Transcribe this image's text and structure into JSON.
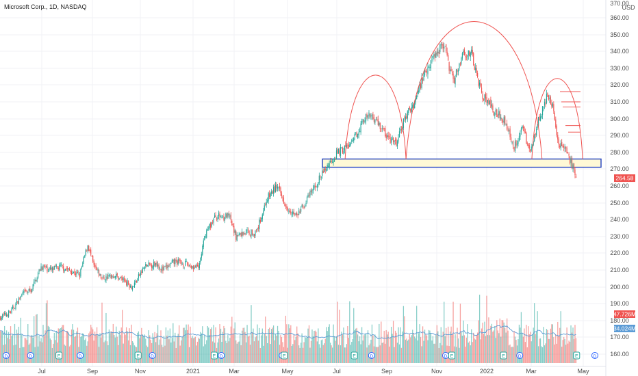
{
  "header": {
    "title": "Microsoft Corp., 1D, NASDAQ"
  },
  "chart_data": {
    "type": "candlestick",
    "currency": "USD",
    "y_ticks": [
      160,
      170,
      180,
      190,
      200,
      210,
      220,
      230,
      240,
      250,
      260,
      270,
      280,
      290,
      300,
      310,
      320,
      330,
      340,
      350,
      360,
      370
    ],
    "x_labels": [
      "Jul",
      "Sep",
      "Nov",
      "2021",
      "Mar",
      "May",
      "Jul",
      "Sep",
      "Nov",
      "2022",
      "Mar",
      "May"
    ],
    "price_waypoints": [
      {
        "t": 0,
        "p": 182
      },
      {
        "t": 10,
        "p": 185
      },
      {
        "t": 22,
        "p": 196
      },
      {
        "t": 30,
        "p": 198
      },
      {
        "t": 40,
        "p": 212
      },
      {
        "t": 50,
        "p": 210
      },
      {
        "t": 60,
        "p": 212
      },
      {
        "t": 70,
        "p": 209
      },
      {
        "t": 78,
        "p": 207
      },
      {
        "t": 86,
        "p": 225
      },
      {
        "t": 92,
        "p": 212
      },
      {
        "t": 100,
        "p": 205
      },
      {
        "t": 112,
        "p": 207
      },
      {
        "t": 122,
        "p": 204
      },
      {
        "t": 130,
        "p": 200
      },
      {
        "t": 142,
        "p": 212
      },
      {
        "t": 154,
        "p": 214
      },
      {
        "t": 160,
        "p": 210
      },
      {
        "t": 172,
        "p": 215
      },
      {
        "t": 185,
        "p": 213
      },
      {
        "t": 195,
        "p": 211
      },
      {
        "t": 202,
        "p": 232
      },
      {
        "t": 212,
        "p": 242
      },
      {
        "t": 225,
        "p": 242
      },
      {
        "t": 232,
        "p": 230
      },
      {
        "t": 242,
        "p": 233
      },
      {
        "t": 252,
        "p": 232
      },
      {
        "t": 262,
        "p": 252
      },
      {
        "t": 272,
        "p": 260
      },
      {
        "t": 282,
        "p": 248
      },
      {
        "t": 292,
        "p": 242
      },
      {
        "t": 302,
        "p": 252
      },
      {
        "t": 312,
        "p": 262
      },
      {
        "t": 322,
        "p": 272
      },
      {
        "t": 332,
        "p": 280
      },
      {
        "t": 346,
        "p": 285
      },
      {
        "t": 358,
        "p": 300
      },
      {
        "t": 366,
        "p": 302
      },
      {
        "t": 374,
        "p": 296
      },
      {
        "t": 382,
        "p": 288
      },
      {
        "t": 390,
        "p": 285
      },
      {
        "t": 398,
        "p": 300
      },
      {
        "t": 408,
        "p": 310
      },
      {
        "t": 418,
        "p": 328
      },
      {
        "t": 428,
        "p": 338
      },
      {
        "t": 436,
        "p": 345
      },
      {
        "t": 446,
        "p": 322
      },
      {
        "t": 456,
        "p": 340
      },
      {
        "t": 464,
        "p": 338
      },
      {
        "t": 474,
        "p": 315
      },
      {
        "t": 486,
        "p": 305
      },
      {
        "t": 496,
        "p": 300
      },
      {
        "t": 506,
        "p": 283
      },
      {
        "t": 514,
        "p": 295
      },
      {
        "t": 522,
        "p": 280
      },
      {
        "t": 530,
        "p": 300
      },
      {
        "t": 538,
        "p": 312
      },
      {
        "t": 544,
        "p": 308
      },
      {
        "t": 550,
        "p": 285
      },
      {
        "t": 556,
        "p": 282
      },
      {
        "t": 562,
        "p": 274
      },
      {
        "t": 567,
        "p": 265
      }
    ],
    "last_price": "264.58",
    "volume_labels": {
      "current": "47.726M",
      "average": "34.024M"
    },
    "support_zone": {
      "low": 271,
      "high": 276
    },
    "arcs": [
      {
        "start_t": 340,
        "end_t": 400,
        "peak": 326
      },
      {
        "start_t": 400,
        "end_t": 534,
        "peak": 358
      },
      {
        "start_t": 524,
        "end_t": 574,
        "peak": 324
      }
    ],
    "resistance_marks": [
      316,
      310,
      307,
      296,
      292
    ],
    "event_markers": [
      {
        "t": 0,
        "kind": "D"
      },
      {
        "t": 24,
        "kind": "D"
      },
      {
        "t": 52,
        "kind": "E"
      },
      {
        "t": 73,
        "kind": "D"
      },
      {
        "t": 130,
        "kind": "E"
      },
      {
        "t": 144,
        "kind": "D"
      },
      {
        "t": 205,
        "kind": "E"
      },
      {
        "t": 212,
        "kind": "D"
      },
      {
        "t": 272,
        "kind": "D"
      },
      {
        "t": 274,
        "kind": "E"
      },
      {
        "t": 343,
        "kind": "E"
      },
      {
        "t": 360,
        "kind": "D"
      },
      {
        "t": 433,
        "kind": "D"
      },
      {
        "t": 439,
        "kind": "E"
      },
      {
        "t": 490,
        "kind": "E"
      },
      {
        "t": 506,
        "kind": "D"
      },
      {
        "t": 562,
        "kind": "E"
      },
      {
        "t": 580,
        "kind": "D"
      }
    ]
  }
}
